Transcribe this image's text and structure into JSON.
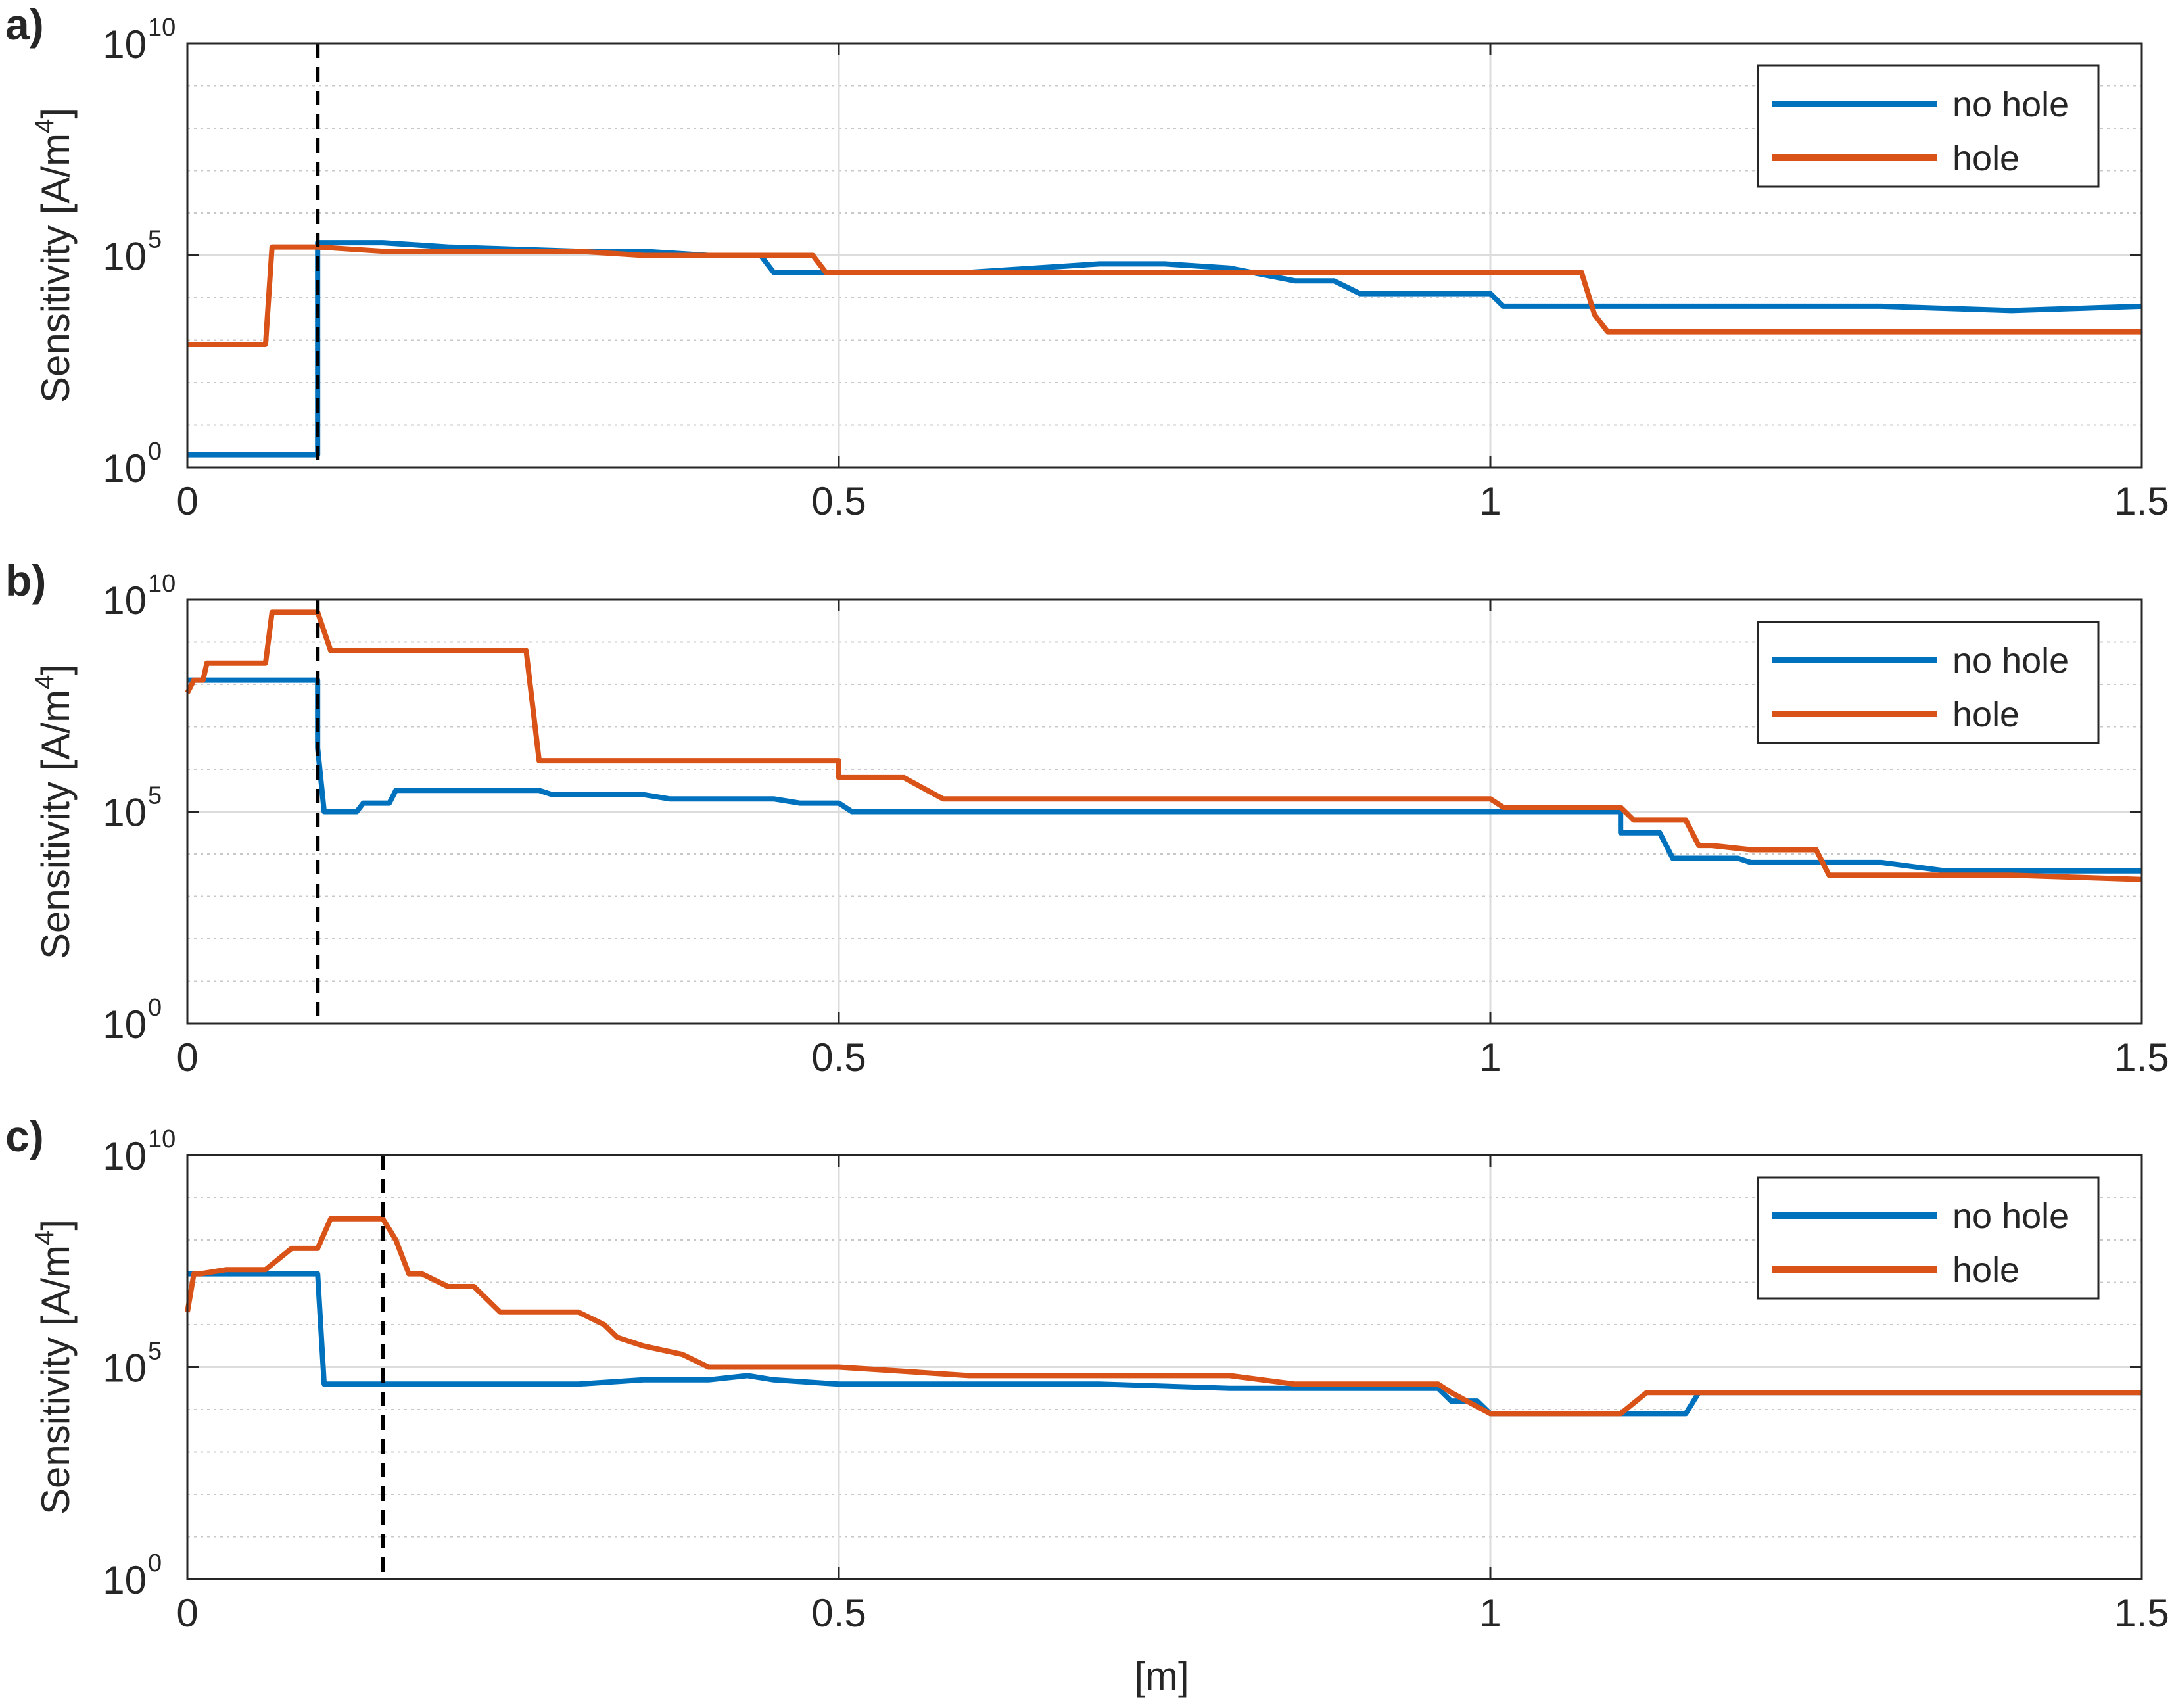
{
  "figure": {
    "xlabel": "[m]"
  },
  "chart_data": [
    {
      "type": "line",
      "panel_label": "a)",
      "ylabel": "Sensitivity [A/m",
      "ylabel_sup": "4",
      "ylabel_close": "]",
      "yscale": "log",
      "xlim": [
        0,
        1.5
      ],
      "ylim_exp": [
        0,
        10
      ],
      "xticks": [
        "0",
        "0.5",
        "1",
        "1.5"
      ],
      "yticks": [
        {
          "base": "10",
          "exp": "0"
        },
        {
          "base": "10",
          "exp": "5"
        },
        {
          "base": "10",
          "exp": "10"
        }
      ],
      "grid": true,
      "legend_position": "top-right",
      "vline_x": 0.1,
      "series": [
        {
          "name": "no hole",
          "color": "#0072BD",
          "x": [
            0,
            0.1,
            0.1,
            0.15,
            0.2,
            0.3,
            0.35,
            0.4,
            0.44,
            0.45,
            0.5,
            0.6,
            0.7,
            0.75,
            0.8,
            0.85,
            0.88,
            0.9,
            0.95,
            1.0,
            1.01,
            1.1,
            1.2,
            1.3,
            1.4,
            1.5
          ],
          "y_exp": [
            0.3,
            0.3,
            5.3,
            5.3,
            5.2,
            5.1,
            5.1,
            5.0,
            5.0,
            4.6,
            4.6,
            4.6,
            4.8,
            4.8,
            4.7,
            4.4,
            4.4,
            4.1,
            4.1,
            4.1,
            3.8,
            3.8,
            3.8,
            3.8,
            3.7,
            3.8
          ]
        },
        {
          "name": "hole",
          "color": "#D95319",
          "x": [
            0,
            0.06,
            0.065,
            0.1,
            0.15,
            0.2,
            0.3,
            0.35,
            0.4,
            0.45,
            0.48,
            0.49,
            0.6,
            0.7,
            0.8,
            0.9,
            1.0,
            1.07,
            1.08,
            1.09,
            1.2,
            1.3,
            1.4,
            1.5
          ],
          "y_exp": [
            2.9,
            2.9,
            5.2,
            5.2,
            5.1,
            5.1,
            5.1,
            5.0,
            5.0,
            5.0,
            5.0,
            4.6,
            4.6,
            4.6,
            4.6,
            4.6,
            4.6,
            4.6,
            3.6,
            3.2,
            3.2,
            3.2,
            3.2,
            3.2
          ]
        }
      ]
    },
    {
      "type": "line",
      "panel_label": "b)",
      "ylabel": "Sensitivity [A/m",
      "ylabel_sup": "4",
      "ylabel_close": "]",
      "yscale": "log",
      "xlim": [
        0,
        1.5
      ],
      "ylim_exp": [
        0,
        10
      ],
      "xticks": [
        "0",
        "0.5",
        "1",
        "1.5"
      ],
      "yticks": [
        {
          "base": "10",
          "exp": "0"
        },
        {
          "base": "10",
          "exp": "5"
        },
        {
          "base": "10",
          "exp": "10"
        }
      ],
      "grid": true,
      "legend_position": "top-right",
      "vline_x": 0.1,
      "series": [
        {
          "name": "no hole",
          "color": "#0072BD",
          "x": [
            0,
            0.1,
            0.1,
            0.105,
            0.13,
            0.135,
            0.155,
            0.16,
            0.175,
            0.2,
            0.27,
            0.28,
            0.35,
            0.37,
            0.45,
            0.47,
            0.5,
            0.51,
            0.6,
            0.8,
            1.0,
            1.1,
            1.1,
            1.13,
            1.14,
            1.19,
            1.2,
            1.3,
            1.35,
            1.4,
            1.5
          ],
          "y_exp": [
            8.1,
            8.1,
            6.5,
            5.0,
            5.0,
            5.2,
            5.2,
            5.5,
            5.5,
            5.5,
            5.5,
            5.4,
            5.4,
            5.3,
            5.3,
            5.2,
            5.2,
            5.0,
            5.0,
            5.0,
            5.0,
            5.0,
            4.5,
            4.5,
            3.9,
            3.9,
            3.8,
            3.8,
            3.6,
            3.6,
            3.6
          ]
        },
        {
          "name": "hole",
          "color": "#D95319",
          "x": [
            0,
            0.005,
            0.012,
            0.015,
            0.06,
            0.065,
            0.1,
            0.11,
            0.15,
            0.2,
            0.26,
            0.265,
            0.27,
            0.3,
            0.4,
            0.5,
            0.5,
            0.55,
            0.58,
            0.6,
            0.7,
            0.8,
            0.9,
            1.0,
            1.01,
            1.1,
            1.11,
            1.15,
            1.16,
            1.17,
            1.2,
            1.25,
            1.26,
            1.3,
            1.4,
            1.5
          ],
          "y_exp": [
            7.8,
            8.1,
            8.1,
            8.5,
            8.5,
            9.7,
            9.7,
            8.8,
            8.8,
            8.8,
            8.8,
            7.5,
            6.2,
            6.2,
            6.2,
            6.2,
            5.8,
            5.8,
            5.3,
            5.3,
            5.3,
            5.3,
            5.3,
            5.3,
            5.1,
            5.1,
            4.8,
            4.8,
            4.2,
            4.2,
            4.1,
            4.1,
            3.5,
            3.5,
            3.5,
            3.4
          ]
        }
      ]
    },
    {
      "type": "line",
      "panel_label": "c)",
      "ylabel": "Sensitivity [A/m",
      "ylabel_sup": "4",
      "ylabel_close": "]",
      "yscale": "log",
      "xlim": [
        0,
        1.5
      ],
      "ylim_exp": [
        0,
        10
      ],
      "xticks": [
        "0",
        "0.5",
        "1",
        "1.5"
      ],
      "yticks": [
        {
          "base": "10",
          "exp": "0"
        },
        {
          "base": "10",
          "exp": "5"
        },
        {
          "base": "10",
          "exp": "10"
        }
      ],
      "grid": true,
      "legend_position": "top-right",
      "vline_x": 0.15,
      "series": [
        {
          "name": "no hole",
          "color": "#0072BD",
          "x": [
            0,
            0.1,
            0.105,
            0.2,
            0.25,
            0.3,
            0.35,
            0.4,
            0.43,
            0.45,
            0.5,
            0.55,
            0.6,
            0.7,
            0.8,
            0.9,
            0.96,
            0.97,
            0.99,
            1.0,
            1.1,
            1.13,
            1.15,
            1.16,
            1.2,
            1.3,
            1.4,
            1.5
          ],
          "y_exp": [
            7.2,
            7.2,
            4.6,
            4.6,
            4.6,
            4.6,
            4.7,
            4.7,
            4.8,
            4.7,
            4.6,
            4.6,
            4.6,
            4.6,
            4.5,
            4.5,
            4.5,
            4.2,
            4.2,
            3.9,
            3.9,
            3.9,
            3.9,
            4.4,
            4.4,
            4.4,
            4.4,
            4.4
          ]
        },
        {
          "name": "hole",
          "color": "#D95319",
          "x": [
            0,
            0.005,
            0.01,
            0.03,
            0.06,
            0.08,
            0.1,
            0.11,
            0.15,
            0.16,
            0.17,
            0.18,
            0.2,
            0.22,
            0.24,
            0.26,
            0.3,
            0.32,
            0.33,
            0.35,
            0.38,
            0.4,
            0.45,
            0.5,
            0.55,
            0.6,
            0.7,
            0.8,
            0.85,
            0.9,
            0.96,
            0.97,
            1.0,
            1.1,
            1.12,
            1.2,
            1.3,
            1.4,
            1.5
          ],
          "y_exp": [
            6.3,
            7.2,
            7.2,
            7.3,
            7.3,
            7.8,
            7.8,
            8.5,
            8.5,
            8.0,
            7.2,
            7.2,
            6.9,
            6.9,
            6.3,
            6.3,
            6.3,
            6.0,
            5.7,
            5.5,
            5.3,
            5.0,
            5.0,
            5.0,
            4.9,
            4.8,
            4.8,
            4.8,
            4.6,
            4.6,
            4.6,
            4.4,
            3.9,
            3.9,
            4.4,
            4.4,
            4.4,
            4.4,
            4.4
          ]
        }
      ]
    }
  ]
}
